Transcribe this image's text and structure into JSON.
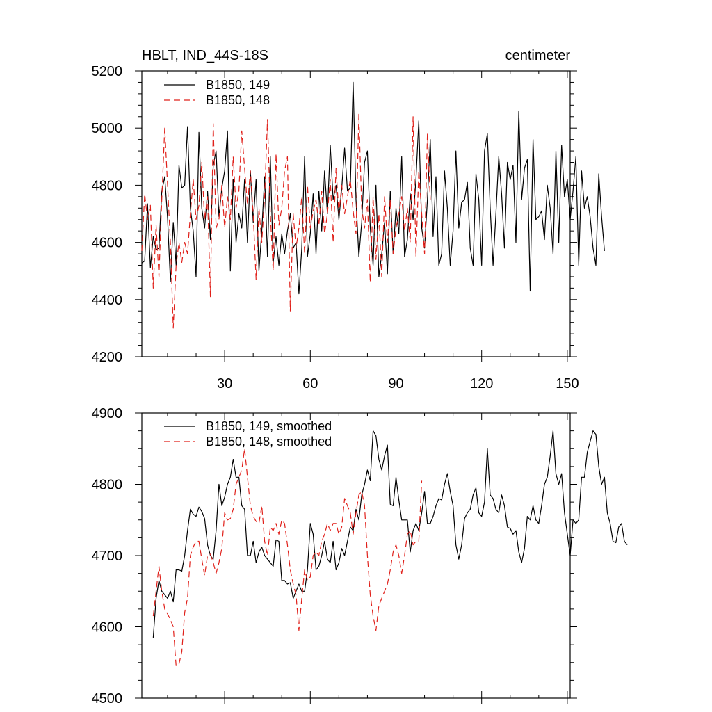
{
  "chart_data": [
    {
      "type": "line",
      "title": "HBLT, IND_44S-18S",
      "units": "centimeter",
      "xlim": [
        1,
        151
      ],
      "ylim": [
        4200,
        5200
      ],
      "x_ticks": [
        30,
        60,
        90,
        120,
        150
      ],
      "y_ticks": [
        4200,
        4400,
        4600,
        4800,
        5000,
        5200
      ],
      "grid": false,
      "legend_position": "top-left",
      "series": [
        {
          "name": "B1850, 149",
          "color": "#000000",
          "dash": "solid",
          "values": [
            4528,
            4535,
            4735,
            4512,
            4620,
            4575,
            4580,
            4780,
            4830,
            4685,
            4462,
            4670,
            4520,
            4870,
            4790,
            4800,
            5005,
            4720,
            4640,
            4480,
            4985,
            4720,
            4650,
            4780,
            4610,
            4870,
            4920,
            4690,
            4790,
            4850,
            4990,
            4500,
            4820,
            4600,
            4700,
            4650,
            4820,
            4600,
            4850,
            4670,
            4820,
            4500,
            4640,
            4830,
            4550,
            4900,
            4530,
            4620,
            4520,
            4630,
            4560,
            4640,
            4700,
            4580,
            4600,
            4420,
            4580,
            4900,
            4550,
            4630,
            4770,
            4560,
            4780,
            4640,
            4850,
            4700,
            4940,
            4750,
            4800,
            4680,
            4790,
            4930,
            4780,
            4790,
            5160,
            4750,
            4550,
            4670,
            4880,
            4920,
            4650,
            4520,
            4800,
            4480,
            4560,
            4670,
            4490,
            4780,
            4560,
            4720,
            4630,
            4900,
            4550,
            4610,
            4770,
            4680,
            4820,
            5025,
            4650,
            4580,
            4750,
            4960,
            4620,
            4830,
            4520,
            4560,
            4850,
            4720,
            4520,
            4640,
            4920,
            4650,
            4740,
            4750,
            4810,
            4580,
            4520,
            4840,
            4750,
            4520,
            4920,
            4980,
            4720,
            4520,
            4700,
            4900,
            4770,
            4580,
            4880,
            4820,
            4870,
            4600,
            5060,
            4750,
            4860,
            4890,
            4430,
            4960,
            4680,
            4690,
            4710,
            4610,
            4800,
            4720,
            4560,
            4920,
            4600,
            4940,
            4760,
            4820,
            4680,
            4780,
            4900,
            4520,
            4850,
            4720,
            4760,
            4690,
            4580,
            4520,
            4840,
            4690,
            4570
          ]
        },
        {
          "name": "B1850, 148",
          "color": "#e0201a",
          "dash": "dashed",
          "values": [
            4570,
            4770,
            4680,
            4730,
            4440,
            4660,
            4480,
            4750,
            5000,
            4800,
            4600,
            4300,
            4520,
            4600,
            4530,
            4600,
            4560,
            4700,
            4820,
            4680,
            4730,
            4880,
            4680,
            4760,
            4410,
            5015,
            4650,
            4680,
            4800,
            4650,
            4760,
            4680,
            4900,
            4720,
            4780,
            4990,
            4860,
            4730,
            4850,
            4700,
            4470,
            4720,
            4600,
            4760,
            5030,
            4700,
            4500,
            4910,
            4660,
            4720,
            4850,
            4900,
            4360,
            4700,
            4580,
            4650,
            4760,
            4560,
            4800,
            4650,
            4710,
            4750,
            4660,
            4780,
            4630,
            4700,
            4820,
            4600,
            4860,
            4700,
            4800,
            4700,
            4760,
            4820,
            4710,
            4630,
            5050,
            4720,
            4650,
            4750,
            4460,
            4760,
            4540,
            4700,
            4480,
            4760,
            4600,
            4750,
            4560,
            4650,
            4700,
            4760,
            4640,
            4720,
            4600,
            5040,
            4550,
            4850,
            4700,
            4560,
            4980,
            4750
          ]
        }
      ]
    },
    {
      "type": "line",
      "xlim": [
        1,
        151
      ],
      "ylim": [
        4500,
        4900
      ],
      "y_ticks": [
        4500,
        4600,
        4700,
        4800,
        4900
      ],
      "grid": false,
      "legend_position": "top-left",
      "series": [
        {
          "name": "B1850, 149, smoothed",
          "color": "#000000",
          "dash": "solid",
          "start_x": 5,
          "values": [
            4585,
            4640,
            4665,
            4650,
            4645,
            4640,
            4650,
            4635,
            4680,
            4680,
            4678,
            4700,
            4735,
            4765,
            4758,
            4755,
            4768,
            4762,
            4752,
            4715,
            4700,
            4695,
            4735,
            4800,
            4770,
            4782,
            4800,
            4810,
            4835,
            4810,
            4810,
            4770,
            4765,
            4700,
            4700,
            4720,
            4690,
            4705,
            4712,
            4700,
            4695,
            4690,
            4685,
            4722,
            4720,
            4665,
            4665,
            4660,
            4662,
            4640,
            4650,
            4660,
            4650,
            4650,
            4680,
            4745,
            4730,
            4680,
            4685,
            4700,
            4720,
            4695,
            4690,
            4720,
            4680,
            4690,
            4710,
            4700,
            4720,
            4740,
            4735,
            4765,
            4750,
            4785,
            4800,
            4820,
            4805,
            4875,
            4868,
            4835,
            4820,
            4840,
            4855,
            4772,
            4770,
            4810,
            4778,
            4750,
            4750,
            4750,
            4705,
            4735,
            4745,
            4735,
            4760,
            4790,
            4745,
            4745,
            4755,
            4770,
            4780,
            4778,
            4800,
            4815,
            4790,
            4770,
            4715,
            4695,
            4715,
            4752,
            4760,
            4765,
            4785,
            4795,
            4760,
            4755,
            4775,
            4850,
            4785,
            4780,
            4765,
            4760,
            4785,
            4770,
            4740,
            4738,
            4730,
            4735,
            4705,
            4690,
            4710,
            4755,
            4750,
            4770,
            4750,
            4745,
            4770,
            4800,
            4810,
            4840,
            4875,
            4815,
            4800,
            4815,
            4760,
            4730,
            4700,
            4750,
            4745,
            4750,
            4810,
            4810,
            4845,
            4860,
            4875,
            4870,
            4825,
            4800,
            4810,
            4760,
            4745,
            4720,
            4718,
            4740,
            4745,
            4720,
            4715
          ]
        },
        {
          "name": "B1850, 148, smoothed",
          "color": "#e0201a",
          "dash": "dashed",
          "start_x": 5,
          "values": [
            4615,
            4650,
            4685,
            4650,
            4625,
            4618,
            4610,
            4600,
            4545,
            4548,
            4565,
            4620,
            4640,
            4700,
            4712,
            4720,
            4720,
            4695,
            4672,
            4700,
            4702,
            4690,
            4675,
            4690,
            4710,
            4760,
            4750,
            4752,
            4765,
            4800,
            4810,
            4820,
            4850,
            4810,
            4770,
            4755,
            4748,
            4745,
            4770,
            4720,
            4700,
            4740,
            4735,
            4745,
            4730,
            4750,
            4745,
            4715,
            4680,
            4660,
            4645,
            4595,
            4640,
            4680,
            4665,
            4670,
            4700,
            4705,
            4700,
            4720,
            4730,
            4745,
            4735,
            4745,
            4745,
            4730,
            4740,
            4780,
            4770,
            4760,
            4730,
            4760,
            4785,
            4790,
            4770,
            4700,
            4645,
            4615,
            4595,
            4630,
            4640,
            4650,
            4660,
            4680,
            4705,
            4715,
            4700,
            4675,
            4700,
            4730,
            4735,
            4715,
            4720,
            4720,
            4805
          ]
        }
      ]
    }
  ]
}
